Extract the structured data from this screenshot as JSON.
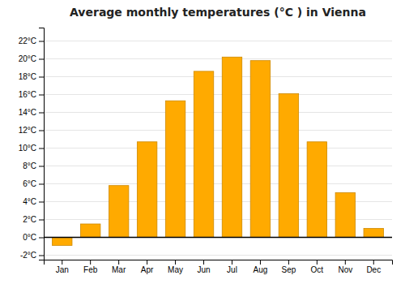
{
  "chart_data": {
    "type": "bar",
    "title": "Average monthly temperatures (°C ) in Vienna",
    "categories": [
      "Jan",
      "Feb",
      "Mar",
      "Apr",
      "May",
      "Jun",
      "Jul",
      "Aug",
      "Sep",
      "Oct",
      "Nov",
      "Dec"
    ],
    "values": [
      -0.9,
      1.5,
      5.8,
      10.7,
      15.3,
      18.6,
      20.2,
      19.8,
      16.1,
      10.7,
      5.0,
      1.0
    ],
    "color": "#FFAA00",
    "ylim": [
      -2.5,
      23.5
    ],
    "yticks": [
      {
        "value": -2,
        "label": "-2°C"
      },
      {
        "value": 0,
        "label": "0°C"
      },
      {
        "value": 2,
        "label": "2°C"
      },
      {
        "value": 4,
        "label": "4°C"
      },
      {
        "value": 6,
        "label": "6°C"
      },
      {
        "value": 8,
        "label": "8°C"
      },
      {
        "value": 10,
        "label": "10°C"
      },
      {
        "value": 12,
        "label": "12°C"
      },
      {
        "value": 14,
        "label": "14°C"
      },
      {
        "value": 16,
        "label": "16°C"
      },
      {
        "value": 18,
        "label": "18°C"
      },
      {
        "value": 20,
        "label": "20°C"
      },
      {
        "value": 22,
        "label": "22°C"
      }
    ],
    "grid": true
  }
}
